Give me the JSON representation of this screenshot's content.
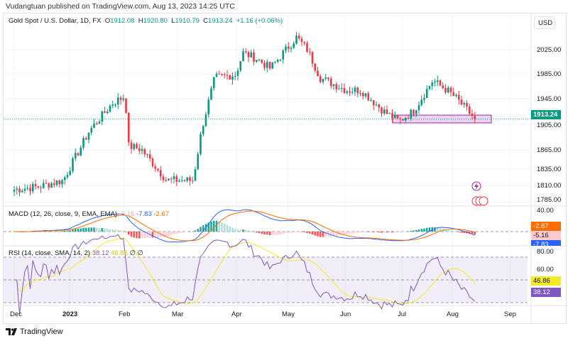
{
  "published": "Vudangtuan published on TradingView.com, Aug 13, 2023 14:25 UTC",
  "legend": {
    "symbol": "Gold Spot / U.S. Dollar, 1D, FX",
    "o_label": "O",
    "o": "1912.08",
    "h_label": "H",
    "h": "1920.80",
    "l_label": "L",
    "l": "1910.79",
    "c_label": "C",
    "c": "1913.24",
    "change": "+1.16 (+0.06%)"
  },
  "macd": {
    "title": "MACD (12, 26, close, 9, EMA, EMA)",
    "hist": "-5.16",
    "macd": "-7.83",
    "signal": "-2.67",
    "axis_top": "40.00"
  },
  "rsi": {
    "title": "RSI (14, close, SMA, 14, 2)",
    "rsi": "38.12",
    "sma": "46.86",
    "z1": "∅",
    "z2": "∅",
    "axis_top": "80.00",
    "axis_mid": "60.00"
  },
  "currency": "USD",
  "last_price": "1913.24",
  "price_axis": [
    "2025.00",
    "1985.00",
    "1945.00",
    "1905.00",
    "1865.00",
    "1835.00",
    "1810.00",
    "1785.00"
  ],
  "time_axis": [
    "Dec",
    "2023",
    "Feb",
    "Mar",
    "Apr",
    "May",
    "Jun",
    "Jul",
    "Aug",
    "Sep"
  ],
  "footer": "TradingView",
  "colors": {
    "up": "#089981",
    "down": "#f23645",
    "macd": "#2962ff",
    "signal": "#ff6d00",
    "rsi": "#7e57c2",
    "rsi_sma": "#f5e829",
    "zone": "#9c27b0"
  },
  "chart_data": {
    "type": "candlestick",
    "title": "Gold Spot / U.S. Dollar, 1D",
    "ylim": [
      1785,
      2050
    ],
    "anchors": [
      [
        "Dec 1",
        1800
      ],
      [
        "Dec 15",
        1805
      ],
      [
        "Dec 28",
        1815
      ],
      [
        "Jan 2",
        1840
      ],
      [
        "Jan 12",
        1895
      ],
      [
        "Jan 25",
        1940
      ],
      [
        "Feb 1",
        1950
      ],
      [
        "Feb 2",
        1915
      ],
      [
        "Feb 3",
        1870
      ],
      [
        "Feb 10",
        1865
      ],
      [
        "Feb 24",
        1815
      ],
      [
        "Mar 8",
        1815
      ],
      [
        "Mar 13",
        1900
      ],
      [
        "Mar 20",
        1980
      ],
      [
        "Apr 1",
        1985
      ],
      [
        "Apr 5",
        2020
      ],
      [
        "Apr 13",
        2010
      ],
      [
        "Apr 20",
        1995
      ],
      [
        "May 4",
        2045
      ],
      [
        "May 10",
        2025
      ],
      [
        "May 17",
        1980
      ],
      [
        "Jun 1",
        1960
      ],
      [
        "Jun 9",
        1960
      ],
      [
        "Jun 22",
        1925
      ],
      [
        "Jun 30",
        1910
      ],
      [
        "Jul 7",
        1925
      ],
      [
        "Jul 18",
        1975
      ],
      [
        "Jul 26",
        1960
      ],
      [
        "Aug 1",
        1945
      ],
      [
        "Aug 11",
        1913
      ]
    ],
    "support_zone": [
      1900,
      1913
    ]
  }
}
